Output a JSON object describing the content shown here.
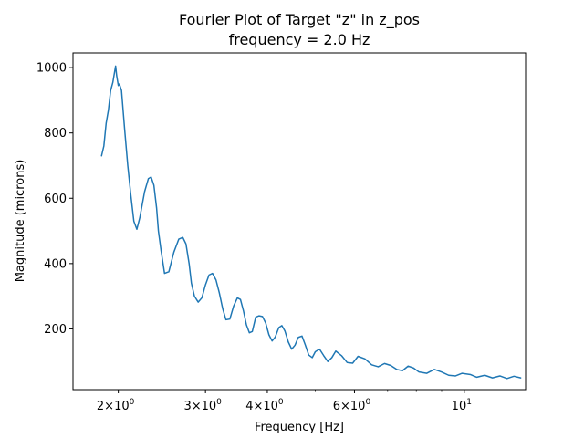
{
  "chart_data": {
    "type": "line",
    "title_line1": "Fourier Plot of Target \"z\" in z_pos",
    "title_line2": "frequency = 2.0 Hz",
    "xlabel": "Frequency [Hz]",
    "ylabel": "Magnitude (microns)",
    "xscale": "log",
    "xlim": [
      1.62,
      13.3
    ],
    "ylim": [
      14,
      1045
    ],
    "grid": false,
    "line_color": "#1f77b4",
    "y_ticks": [
      {
        "value": 200,
        "label": "200"
      },
      {
        "value": 400,
        "label": "400"
      },
      {
        "value": 600,
        "label": "600"
      },
      {
        "value": 800,
        "label": "800"
      },
      {
        "value": 1000,
        "label": "1000"
      }
    ],
    "x_major_ticks": [
      {
        "value": 2,
        "base": "2×10",
        "exp": "0"
      },
      {
        "value": 3,
        "base": "3×10",
        "exp": "0"
      },
      {
        "value": 4,
        "base": "4×10",
        "exp": "0"
      },
      {
        "value": 6,
        "base": "6×10",
        "exp": "0"
      },
      {
        "value": 10,
        "base": "10",
        "exp": "1"
      }
    ],
    "x_minor_ticks": [
      5,
      7,
      8,
      9
    ],
    "series": [
      {
        "name": "magnitude",
        "x": [
          1.85,
          1.87,
          1.89,
          1.91,
          1.93,
          1.95,
          1.96,
          1.975,
          1.985,
          2.0,
          2.01,
          2.03,
          2.06,
          2.09,
          2.12,
          2.15,
          2.18,
          2.21,
          2.26,
          2.3,
          2.33,
          2.36,
          2.39,
          2.41,
          2.44,
          2.48,
          2.53,
          2.59,
          2.65,
          2.7,
          2.74,
          2.78,
          2.81,
          2.85,
          2.9,
          2.95,
          3.0,
          3.05,
          3.1,
          3.15,
          3.2,
          3.25,
          3.3,
          3.36,
          3.42,
          3.48,
          3.53,
          3.58,
          3.63,
          3.68,
          3.73,
          3.79,
          3.85,
          3.91,
          3.97,
          4.03,
          4.09,
          4.15,
          4.22,
          4.28,
          4.34,
          4.41,
          4.48,
          4.55,
          4.62,
          4.7,
          4.77,
          4.85,
          4.93,
          5.0,
          5.1,
          5.2,
          5.3,
          5.4,
          5.5,
          5.65,
          5.8,
          5.95,
          6.1,
          6.3,
          6.5,
          6.7,
          6.9,
          7.1,
          7.3,
          7.5,
          7.7,
          7.9,
          8.1,
          8.4,
          8.7,
          9.0,
          9.3,
          9.6,
          9.9,
          10.3,
          10.6,
          11.0,
          11.4,
          11.8,
          12.2,
          12.6,
          13.0
        ],
        "y": [
          730,
          760,
          830,
          870,
          930,
          955,
          975,
          1005,
          975,
          945,
          950,
          930,
          810,
          700,
          610,
          530,
          505,
          540,
          620,
          660,
          665,
          640,
          570,
          500,
          440,
          370,
          375,
          435,
          475,
          480,
          460,
          400,
          340,
          300,
          282,
          295,
          335,
          365,
          370,
          350,
          310,
          262,
          228,
          230,
          270,
          295,
          290,
          255,
          212,
          188,
          192,
          236,
          240,
          238,
          218,
          182,
          163,
          175,
          204,
          210,
          194,
          160,
          138,
          150,
          174,
          178,
          152,
          120,
          112,
          130,
          138,
          118,
          100,
          112,
          132,
          118,
          97,
          95,
          116,
          108,
          90,
          84,
          94,
          88,
          76,
          72,
          86,
          80,
          68,
          64,
          76,
          68,
          58,
          56,
          64,
          60,
          52,
          58,
          50,
          56,
          48,
          55,
          50
        ]
      }
    ]
  }
}
